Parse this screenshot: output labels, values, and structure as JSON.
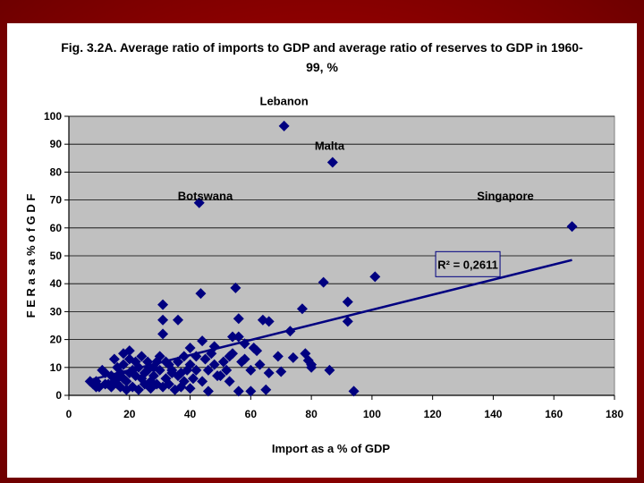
{
  "chart_data": {
    "type": "scatter",
    "title_lines": [
      "Fig. 3.2A. Average ratio of imports to GDP and average ratio of reserves to GDP in 1960-",
      "99, %"
    ],
    "xlabel": "Import as a % of GDP",
    "ylabel": "F E R  a s  a  %  o f  G D F",
    "xlim": [
      0,
      180
    ],
    "ylim": [
      0,
      100
    ],
    "x_ticks": [
      0,
      20,
      40,
      60,
      80,
      100,
      120,
      140,
      160,
      180
    ],
    "y_ticks": [
      0,
      10,
      20,
      30,
      40,
      50,
      60,
      70,
      80,
      90,
      100
    ],
    "grid": "horizontal",
    "marker_color": "#000080",
    "plot_bg": "#c0c0c0",
    "r_squared_label": "R² = 0,2611",
    "trendline": {
      "x": [
        7,
        166
      ],
      "y": [
        5.5,
        48.5
      ]
    },
    "annotations": [
      {
        "text": "Lebanon",
        "x": 71,
        "y": 104
      },
      {
        "text": "Malta",
        "x": 86,
        "y": 88
      },
      {
        "text": "Botswana",
        "x": 45,
        "y": 70
      },
      {
        "text": "Singapore",
        "x": 144,
        "y": 70
      }
    ],
    "points": [
      [
        71,
        96.5
      ],
      [
        87,
        83.5
      ],
      [
        43,
        69
      ],
      [
        166,
        60.5
      ],
      [
        101,
        42.5
      ],
      [
        84,
        40.5
      ],
      [
        55,
        38.5
      ],
      [
        43.5,
        36.5
      ],
      [
        92,
        33.5
      ],
      [
        31,
        32.5
      ],
      [
        77,
        31
      ],
      [
        56,
        27.5
      ],
      [
        64,
        27
      ],
      [
        36,
        27
      ],
      [
        31,
        27
      ],
      [
        92,
        26.5
      ],
      [
        66,
        26.5
      ],
      [
        31,
        22
      ],
      [
        73,
        23
      ],
      [
        54,
        21
      ],
      [
        56,
        21
      ],
      [
        44,
        19.5
      ],
      [
        58,
        18.5
      ],
      [
        61,
        17
      ],
      [
        48,
        17.5
      ],
      [
        40,
        17
      ],
      [
        69,
        14
      ],
      [
        74,
        13.5
      ],
      [
        78,
        15
      ],
      [
        79,
        12.5
      ],
      [
        80,
        11
      ],
      [
        80,
        10
      ],
      [
        86,
        9
      ],
      [
        70,
        8.5
      ],
      [
        66,
        8
      ],
      [
        63,
        11
      ],
      [
        60,
        9
      ],
      [
        57,
        12
      ],
      [
        53,
        14
      ],
      [
        51,
        12
      ],
      [
        47,
        15
      ],
      [
        45,
        13
      ],
      [
        42,
        14
      ],
      [
        40,
        11
      ],
      [
        39,
        9
      ],
      [
        37,
        8
      ],
      [
        36,
        7
      ],
      [
        34,
        9
      ],
      [
        33,
        11
      ],
      [
        32,
        6
      ],
      [
        30,
        9
      ],
      [
        29,
        12
      ],
      [
        28,
        7
      ],
      [
        27,
        5
      ],
      [
        26,
        9
      ],
      [
        25,
        8
      ],
      [
        24,
        6
      ],
      [
        23,
        10
      ],
      [
        22,
        7
      ],
      [
        21,
        9
      ],
      [
        20,
        13
      ],
      [
        20,
        16
      ],
      [
        19,
        5
      ],
      [
        18,
        11
      ],
      [
        18,
        15
      ],
      [
        17,
        3
      ],
      [
        17,
        8
      ],
      [
        16,
        10
      ],
      [
        15,
        5
      ],
      [
        15,
        13
      ],
      [
        14,
        7
      ],
      [
        13,
        4
      ],
      [
        12,
        8
      ],
      [
        11,
        9
      ],
      [
        10,
        3
      ],
      [
        9,
        5
      ],
      [
        8,
        4
      ],
      [
        7,
        5
      ],
      [
        9,
        3
      ],
      [
        12,
        4
      ],
      [
        14,
        3
      ],
      [
        16,
        6
      ],
      [
        19,
        2
      ],
      [
        21,
        3
      ],
      [
        23,
        2
      ],
      [
        25,
        4
      ],
      [
        27,
        2.5
      ],
      [
        29,
        4
      ],
      [
        31,
        3
      ],
      [
        33,
        4
      ],
      [
        35,
        2
      ],
      [
        37,
        3
      ],
      [
        38,
        5
      ],
      [
        40,
        2.5
      ],
      [
        41,
        6
      ],
      [
        46,
        1.5
      ],
      [
        49,
        7
      ],
      [
        53,
        5
      ],
      [
        56,
        1.5
      ],
      [
        60,
        1.5
      ],
      [
        65,
        2
      ],
      [
        94,
        1.5
      ],
      [
        26,
        12
      ],
      [
        28,
        10
      ],
      [
        30,
        14
      ],
      [
        32,
        12
      ],
      [
        34,
        8
      ],
      [
        36,
        12
      ],
      [
        38,
        14
      ],
      [
        22,
        12
      ],
      [
        24,
        14
      ],
      [
        20,
        8
      ],
      [
        18,
        6
      ],
      [
        16,
        4
      ],
      [
        52,
        9
      ],
      [
        54,
        15
      ],
      [
        58,
        13
      ],
      [
        62,
        16
      ],
      [
        46,
        9
      ],
      [
        48,
        11
      ],
      [
        50,
        7
      ],
      [
        44,
        5
      ],
      [
        42,
        9
      ]
    ]
  }
}
